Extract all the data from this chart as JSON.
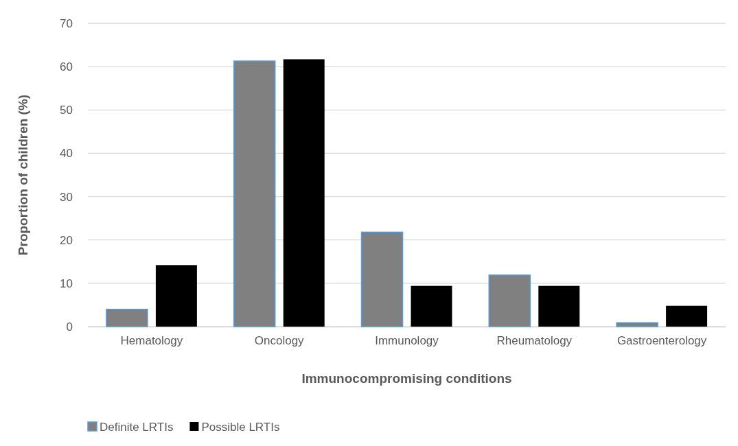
{
  "chart_data": {
    "type": "bar",
    "xlabel": "Immunocompromising conditions",
    "ylabel": "Proportion of children (%)",
    "categories": [
      "Hematology",
      "Oncology",
      "Immunology",
      "Rheumatology",
      "Gastroenterology"
    ],
    "series": [
      {
        "name": "Definite LRTIs",
        "color": "#808080",
        "values": [
          4.0,
          61.3,
          21.8,
          11.9,
          0.9
        ]
      },
      {
        "name": "Possible LRTIs",
        "color": "#000000",
        "values": [
          14.2,
          61.7,
          9.4,
          9.4,
          4.8
        ]
      }
    ],
    "ylim": [
      0,
      70
    ],
    "yticks": [
      0,
      10,
      20,
      30,
      40,
      50,
      60,
      70
    ],
    "grid": "y",
    "legend": "bottom left"
  }
}
